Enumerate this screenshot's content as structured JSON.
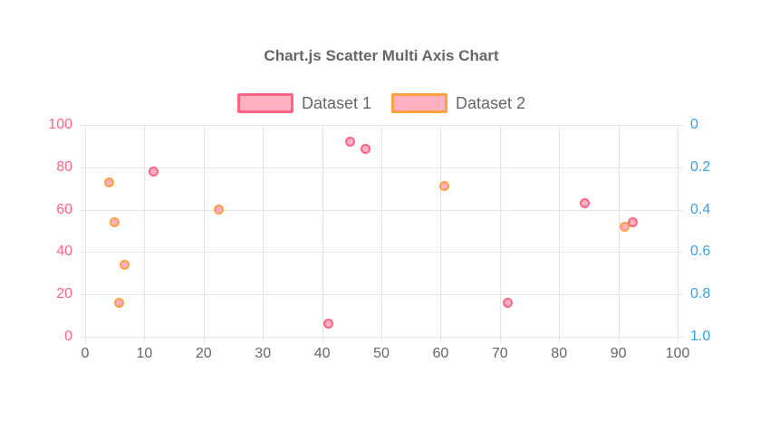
{
  "title": "Chart.js Scatter Multi Axis Chart",
  "legend": {
    "items": [
      {
        "label": "Dataset 1",
        "fill": "#ffb1c1",
        "border": "#ff6384"
      },
      {
        "label": "Dataset 2",
        "fill": "#ffb1c1",
        "border": "#ff9f40"
      }
    ]
  },
  "chart_data": {
    "type": "scatter",
    "title": "Chart.js Scatter Multi Axis Chart",
    "legend_position": "top",
    "grid": {
      "on": true,
      "color": "#e6e6e6"
    },
    "axes": {
      "x": {
        "min": 0,
        "max": 100,
        "labels": [
          "0",
          "10",
          "20",
          "30",
          "40",
          "50",
          "60",
          "70",
          "80",
          "90",
          "100"
        ],
        "tick_color": "#666666"
      },
      "y_left": {
        "min": 0,
        "max": 100,
        "reversed": false,
        "labels": [
          "0",
          "20",
          "40",
          "60",
          "80",
          "100"
        ],
        "tick_color": "#ff6384"
      },
      "y_right": {
        "min": 0,
        "max": 1,
        "reversed": true,
        "labels": [
          "0",
          "0.2",
          "0.4",
          "0.6",
          "0.8",
          "1.0"
        ],
        "tick_color": "#36a2eb"
      }
    },
    "series": [
      {
        "name": "Dataset 1",
        "axis": "y_left",
        "point_fill": "#ffb1c1",
        "point_border": "#ff6384",
        "points": [
          {
            "x": 11.6,
            "y": 78
          },
          {
            "x": 44.8,
            "y": 92.3
          },
          {
            "x": 47.4,
            "y": 88.5
          },
          {
            "x": 41.0,
            "y": 6
          },
          {
            "x": 71.3,
            "y": 16
          },
          {
            "x": 84.4,
            "y": 63
          },
          {
            "x": 92.5,
            "y": 54
          }
        ]
      },
      {
        "name": "Dataset 2",
        "axis": "y_right",
        "point_fill": "#ffb1c1",
        "point_border": "#ff9f40",
        "points": [
          {
            "x": 4.1,
            "y": 0.27
          },
          {
            "x": 5.0,
            "y": 0.46
          },
          {
            "x": 6.6,
            "y": 0.66
          },
          {
            "x": 5.7,
            "y": 0.84
          },
          {
            "x": 22.5,
            "y": 0.4
          },
          {
            "x": 60.7,
            "y": 0.29
          },
          {
            "x": 91.1,
            "y": 0.48
          }
        ]
      }
    ]
  }
}
